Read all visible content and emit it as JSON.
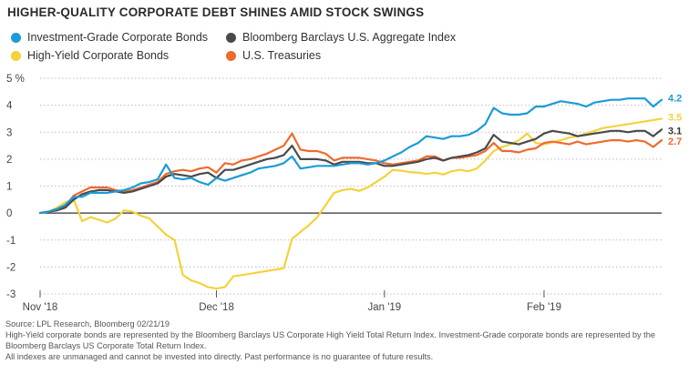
{
  "title": "HIGHER-QUALITY CORPORATE DEBT SHINES AMID STOCK SWINGS",
  "legend": [
    {
      "label": "Investment-Grade Corporate Bonds",
      "color": "#1b9bd7"
    },
    {
      "label": "Bloomberg Barclays U.S. Aggregate Index",
      "color": "#4a4a4a"
    },
    {
      "label": "High-Yield Corporate Bonds",
      "color": "#f4d23c"
    },
    {
      "label": "U.S. Treasuries",
      "color": "#ef6a2d"
    }
  ],
  "footnotes": {
    "source": "Source: LPL Research, Bloomberg   02/21/19",
    "line1": "High-Yield corporate bonds are represented by the Bloomberg Barclays US Corporate High Yield Total Return Index. Investment-Grade corporate bonds are represented by the",
    "line2": "Bloomberg Barclays US Corporate Total Return Index.",
    "line3": "All indexes are unmanaged and cannot be invested into directly. Past performance is no guarantee of future results."
  },
  "chart_data": {
    "type": "line",
    "title": "HIGHER-QUALITY CORPORATE DEBT SHINES AMID STOCK SWINGS",
    "xlabel": "",
    "ylabel": "",
    "ylim": [
      -3,
      5
    ],
    "y_ticks": [
      -3,
      -2,
      -1,
      0,
      1,
      2,
      3,
      4,
      5
    ],
    "y_tick_labels": [
      "-3",
      "-2",
      "-1",
      "0",
      "1",
      "2",
      "3",
      "4",
      "5 %"
    ],
    "x_range": [
      0,
      74
    ],
    "x_ticks": [
      {
        "x": 0,
        "label": "Nov '18"
      },
      {
        "x": 21,
        "label": "Dec '18"
      },
      {
        "x": 41,
        "label": "Jan '19"
      },
      {
        "x": 60,
        "label": "Feb '19"
      }
    ],
    "grid": "horizontal-dotted",
    "legend_position": "top-left",
    "series": [
      {
        "name": "High-Yield Corporate Bonds",
        "color": "#f4d23c",
        "end_label": "3.5",
        "points": [
          [
            0,
            0
          ],
          [
            1,
            0.05
          ],
          [
            2,
            0.2
          ],
          [
            3,
            0.4
          ],
          [
            4,
            0.5
          ],
          [
            5,
            -0.3
          ],
          [
            6,
            -0.15
          ],
          [
            7,
            -0.25
          ],
          [
            8,
            -0.35
          ],
          [
            9,
            -0.2
          ],
          [
            10,
            0.1
          ],
          [
            11,
            0.05
          ],
          [
            12,
            -0.1
          ],
          [
            13,
            -0.2
          ],
          [
            14,
            -0.5
          ],
          [
            15,
            -0.8
          ],
          [
            16,
            -1
          ],
          [
            17,
            -2.3
          ],
          [
            18,
            -2.5
          ],
          [
            19,
            -2.6
          ],
          [
            20,
            -2.75
          ],
          [
            21,
            -2.8
          ],
          [
            22,
            -2.75
          ],
          [
            23,
            -2.35
          ],
          [
            24,
            -2.3
          ],
          [
            25,
            -2.25
          ],
          [
            26,
            -2.2
          ],
          [
            27,
            -2.15
          ],
          [
            28,
            -2.1
          ],
          [
            29,
            -2.05
          ],
          [
            30,
            -0.95
          ],
          [
            31,
            -0.7
          ],
          [
            32,
            -0.45
          ],
          [
            33,
            -0.15
          ],
          [
            34,
            0.3
          ],
          [
            35,
            0.75
          ],
          [
            36,
            0.85
          ],
          [
            37,
            0.9
          ],
          [
            38,
            0.82
          ],
          [
            39,
            0.95
          ],
          [
            40,
            1.15
          ],
          [
            41,
            1.35
          ],
          [
            42,
            1.6
          ],
          [
            43,
            1.57
          ],
          [
            44,
            1.52
          ],
          [
            45,
            1.5
          ],
          [
            46,
            1.45
          ],
          [
            47,
            1.5
          ],
          [
            48,
            1.43
          ],
          [
            49,
            1.55
          ],
          [
            50,
            1.6
          ],
          [
            51,
            1.55
          ],
          [
            52,
            1.65
          ],
          [
            53,
            1.95
          ],
          [
            54,
            2.3
          ],
          [
            55,
            2.45
          ],
          [
            56,
            2.55
          ],
          [
            57,
            2.7
          ],
          [
            58,
            2.95
          ],
          [
            59,
            2.6
          ],
          [
            60,
            2.55
          ],
          [
            61,
            2.62
          ],
          [
            62,
            2.7
          ],
          [
            63,
            2.8
          ],
          [
            64,
            2.85
          ],
          [
            65,
            2.95
          ],
          [
            66,
            3.05
          ],
          [
            67,
            3.15
          ],
          [
            68,
            3.2
          ],
          [
            69,
            3.25
          ],
          [
            70,
            3.3
          ],
          [
            71,
            3.35
          ],
          [
            72,
            3.4
          ],
          [
            73,
            3.45
          ],
          [
            74,
            3.5
          ]
        ]
      },
      {
        "name": "U.S. Treasuries",
        "color": "#ef6a2d",
        "end_label": "2.7",
        "points": [
          [
            0,
            0
          ],
          [
            1,
            0.05
          ],
          [
            2,
            0.1
          ],
          [
            3,
            0.25
          ],
          [
            4,
            0.65
          ],
          [
            5,
            0.8
          ],
          [
            6,
            0.95
          ],
          [
            7,
            0.95
          ],
          [
            8,
            0.95
          ],
          [
            9,
            0.85
          ],
          [
            10,
            0.8
          ],
          [
            11,
            0.85
          ],
          [
            12,
            0.95
          ],
          [
            13,
            1.05
          ],
          [
            14,
            1.15
          ],
          [
            15,
            1.45
          ],
          [
            16,
            1.55
          ],
          [
            17,
            1.6
          ],
          [
            18,
            1.55
          ],
          [
            19,
            1.65
          ],
          [
            20,
            1.7
          ],
          [
            21,
            1.5
          ],
          [
            22,
            1.85
          ],
          [
            23,
            1.8
          ],
          [
            24,
            1.95
          ],
          [
            25,
            2
          ],
          [
            26,
            2.1
          ],
          [
            27,
            2.2
          ],
          [
            28,
            2.35
          ],
          [
            29,
            2.5
          ],
          [
            30,
            2.95
          ],
          [
            31,
            2.35
          ],
          [
            32,
            2.3
          ],
          [
            33,
            2.3
          ],
          [
            34,
            2.2
          ],
          [
            35,
            1.95
          ],
          [
            36,
            2.05
          ],
          [
            37,
            2.05
          ],
          [
            38,
            2.05
          ],
          [
            39,
            2.0
          ],
          [
            40,
            1.95
          ],
          [
            41,
            1.85
          ],
          [
            42,
            1.8
          ],
          [
            43,
            1.85
          ],
          [
            44,
            1.9
          ],
          [
            45,
            1.95
          ],
          [
            46,
            2.1
          ],
          [
            47,
            2.1
          ],
          [
            48,
            1.95
          ],
          [
            49,
            2.05
          ],
          [
            50,
            2.05
          ],
          [
            51,
            2.1
          ],
          [
            52,
            2.15
          ],
          [
            53,
            2.3
          ],
          [
            54,
            2.6
          ],
          [
            55,
            2.3
          ],
          [
            56,
            2.3
          ],
          [
            57,
            2.25
          ],
          [
            58,
            2.35
          ],
          [
            59,
            2.4
          ],
          [
            60,
            2.6
          ],
          [
            61,
            2.65
          ],
          [
            62,
            2.6
          ],
          [
            63,
            2.55
          ],
          [
            64,
            2.65
          ],
          [
            65,
            2.55
          ],
          [
            66,
            2.6
          ],
          [
            67,
            2.65
          ],
          [
            68,
            2.7
          ],
          [
            69,
            2.7
          ],
          [
            70,
            2.65
          ],
          [
            71,
            2.7
          ],
          [
            72,
            2.65
          ],
          [
            73,
            2.45
          ],
          [
            74,
            2.7
          ]
        ]
      },
      {
        "name": "Bloomberg Barclays U.S. Aggregate Index",
        "color": "#4a4a4a",
        "end_label": "3.1",
        "points": [
          [
            0,
            0
          ],
          [
            1,
            0.05
          ],
          [
            2,
            0.1
          ],
          [
            3,
            0.2
          ],
          [
            4,
            0.5
          ],
          [
            5,
            0.7
          ],
          [
            6,
            0.8
          ],
          [
            7,
            0.85
          ],
          [
            8,
            0.85
          ],
          [
            9,
            0.8
          ],
          [
            10,
            0.75
          ],
          [
            11,
            0.8
          ],
          [
            12,
            0.9
          ],
          [
            13,
            1.0
          ],
          [
            14,
            1.1
          ],
          [
            15,
            1.35
          ],
          [
            16,
            1.45
          ],
          [
            17,
            1.4
          ],
          [
            18,
            1.35
          ],
          [
            19,
            1.45
          ],
          [
            20,
            1.5
          ],
          [
            21,
            1.3
          ],
          [
            22,
            1.6
          ],
          [
            23,
            1.6
          ],
          [
            24,
            1.7
          ],
          [
            25,
            1.8
          ],
          [
            26,
            1.9
          ],
          [
            27,
            2.0
          ],
          [
            28,
            2.05
          ],
          [
            29,
            2.15
          ],
          [
            30,
            2.5
          ],
          [
            31,
            2.0
          ],
          [
            32,
            2.0
          ],
          [
            33,
            2.0
          ],
          [
            34,
            1.95
          ],
          [
            35,
            1.8
          ],
          [
            36,
            1.9
          ],
          [
            37,
            1.9
          ],
          [
            38,
            1.9
          ],
          [
            39,
            1.85
          ],
          [
            40,
            1.85
          ],
          [
            41,
            1.75
          ],
          [
            42,
            1.75
          ],
          [
            43,
            1.8
          ],
          [
            44,
            1.85
          ],
          [
            45,
            1.9
          ],
          [
            46,
            2.0
          ],
          [
            47,
            2.05
          ],
          [
            48,
            1.95
          ],
          [
            49,
            2.05
          ],
          [
            50,
            2.1
          ],
          [
            51,
            2.15
          ],
          [
            52,
            2.25
          ],
          [
            53,
            2.4
          ],
          [
            54,
            2.9
          ],
          [
            55,
            2.65
          ],
          [
            56,
            2.6
          ],
          [
            57,
            2.55
          ],
          [
            58,
            2.65
          ],
          [
            59,
            2.75
          ],
          [
            60,
            2.95
          ],
          [
            61,
            3.05
          ],
          [
            62,
            3.0
          ],
          [
            63,
            2.95
          ],
          [
            64,
            2.85
          ],
          [
            65,
            2.9
          ],
          [
            66,
            2.95
          ],
          [
            67,
            3.0
          ],
          [
            68,
            3.05
          ],
          [
            69,
            3.05
          ],
          [
            70,
            3.0
          ],
          [
            71,
            3.05
          ],
          [
            72,
            3.05
          ],
          [
            73,
            2.85
          ],
          [
            74,
            3.1
          ]
        ]
      },
      {
        "name": "Investment-Grade Corporate Bonds",
        "color": "#1b9bd7",
        "end_label": "4.2",
        "points": [
          [
            0,
            0
          ],
          [
            1,
            0.05
          ],
          [
            2,
            0.15
          ],
          [
            3,
            0.3
          ],
          [
            4,
            0.6
          ],
          [
            5,
            0.6
          ],
          [
            6,
            0.75
          ],
          [
            7,
            0.75
          ],
          [
            8,
            0.75
          ],
          [
            9,
            0.8
          ],
          [
            10,
            0.85
          ],
          [
            11,
            0.95
          ],
          [
            12,
            1.1
          ],
          [
            13,
            1.15
          ],
          [
            14,
            1.25
          ],
          [
            15,
            1.8
          ],
          [
            16,
            1.3
          ],
          [
            17,
            1.25
          ],
          [
            18,
            1.3
          ],
          [
            19,
            1.15
          ],
          [
            20,
            1.05
          ],
          [
            21,
            1.3
          ],
          [
            22,
            1.2
          ],
          [
            23,
            1.3
          ],
          [
            24,
            1.4
          ],
          [
            25,
            1.5
          ],
          [
            26,
            1.65
          ],
          [
            27,
            1.7
          ],
          [
            28,
            1.75
          ],
          [
            29,
            1.85
          ],
          [
            30,
            2.1
          ],
          [
            31,
            1.65
          ],
          [
            32,
            1.7
          ],
          [
            33,
            1.75
          ],
          [
            34,
            1.75
          ],
          [
            35,
            1.75
          ],
          [
            36,
            1.8
          ],
          [
            37,
            1.85
          ],
          [
            38,
            1.85
          ],
          [
            39,
            1.8
          ],
          [
            40,
            1.85
          ],
          [
            41,
            1.95
          ],
          [
            42,
            2.1
          ],
          [
            43,
            2.25
          ],
          [
            44,
            2.45
          ],
          [
            45,
            2.6
          ],
          [
            46,
            2.85
          ],
          [
            47,
            2.8
          ],
          [
            48,
            2.75
          ],
          [
            49,
            2.85
          ],
          [
            50,
            2.85
          ],
          [
            51,
            2.9
          ],
          [
            52,
            3.05
          ],
          [
            53,
            3.3
          ],
          [
            54,
            3.9
          ],
          [
            55,
            3.7
          ],
          [
            56,
            3.65
          ],
          [
            57,
            3.65
          ],
          [
            58,
            3.7
          ],
          [
            59,
            3.95
          ],
          [
            60,
            3.95
          ],
          [
            61,
            4.05
          ],
          [
            62,
            4.15
          ],
          [
            63,
            4.1
          ],
          [
            64,
            4.05
          ],
          [
            65,
            3.95
          ],
          [
            66,
            4.1
          ],
          [
            67,
            4.15
          ],
          [
            68,
            4.2
          ],
          [
            69,
            4.2
          ],
          [
            70,
            4.25
          ],
          [
            71,
            4.25
          ],
          [
            72,
            4.25
          ],
          [
            73,
            3.95
          ],
          [
            74,
            4.2
          ]
        ]
      }
    ]
  }
}
